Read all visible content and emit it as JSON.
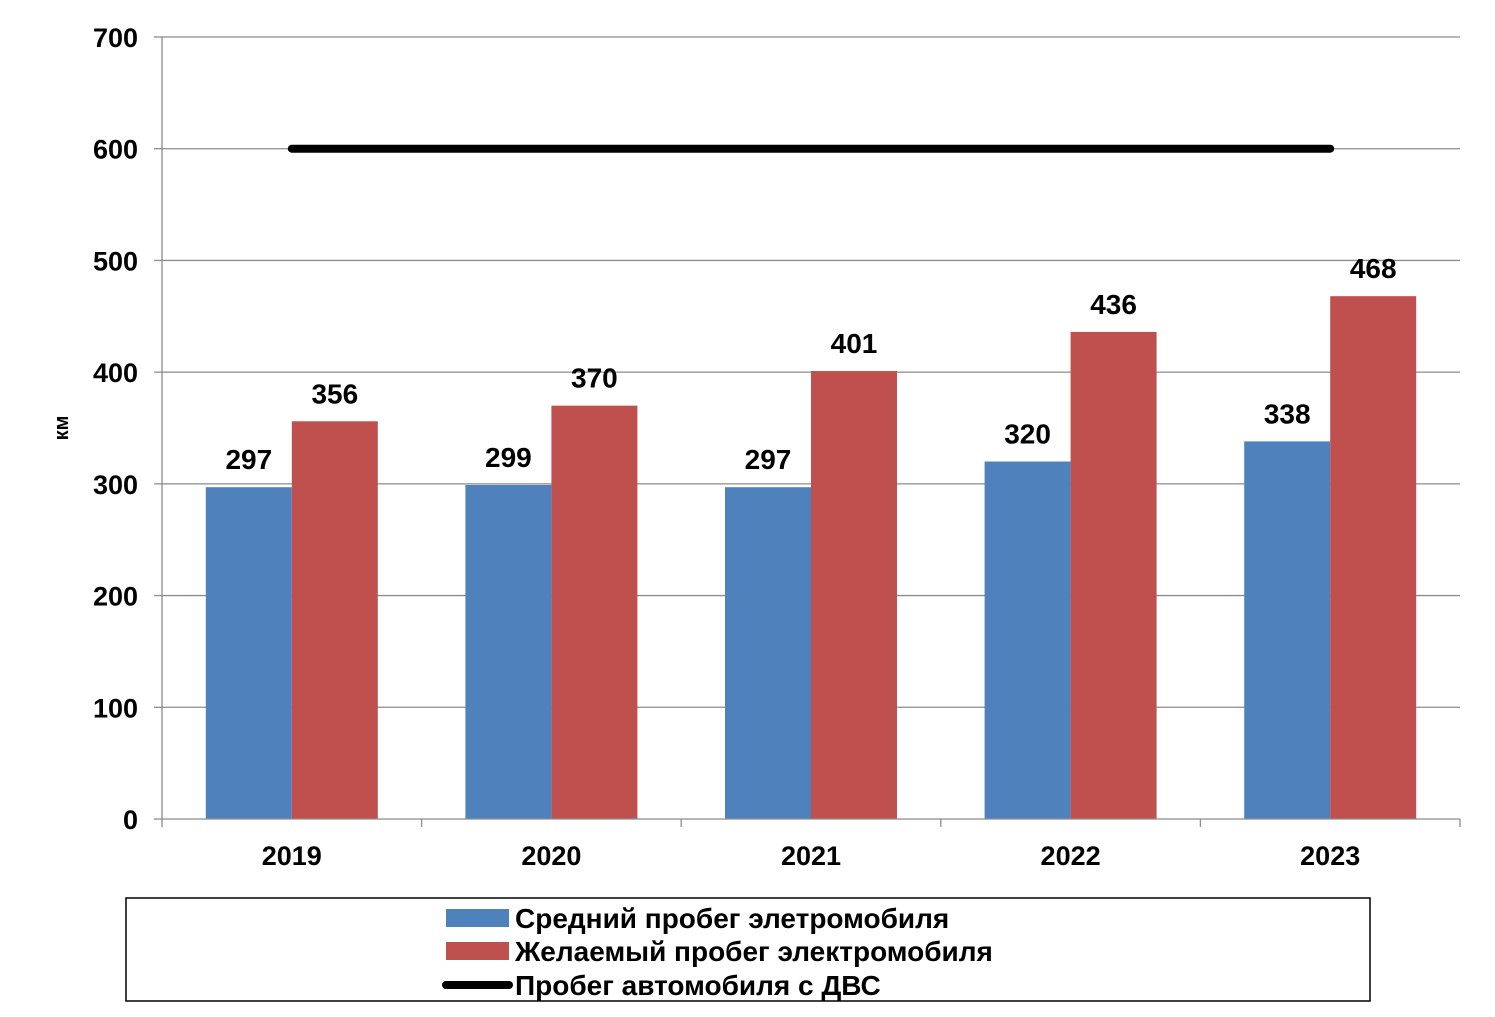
{
  "chart_data": {
    "type": "bar",
    "categories": [
      "2019",
      "2020",
      "2021",
      "2022",
      "2023"
    ],
    "series": [
      {
        "name": "Средний пробег элетромобиля",
        "kind": "bar",
        "color": "#4F81BD",
        "values": [
          297,
          299,
          297,
          320,
          338
        ]
      },
      {
        "name": "Желаемый пробег электромобиля",
        "kind": "bar",
        "color": "#C0504D",
        "values": [
          356,
          370,
          401,
          436,
          468
        ]
      },
      {
        "name": "Пробег автомобиля с ДВС",
        "kind": "line",
        "color": "#000000",
        "values": [
          600,
          600,
          600,
          600,
          600
        ]
      }
    ],
    "title": "",
    "xlabel": "",
    "ylabel": "км",
    "ylim": [
      0,
      700
    ],
    "yticks": [
      0,
      100,
      200,
      300,
      400,
      500,
      600,
      700
    ],
    "grid": true,
    "legend_position": "bottom",
    "data_labels": true
  }
}
